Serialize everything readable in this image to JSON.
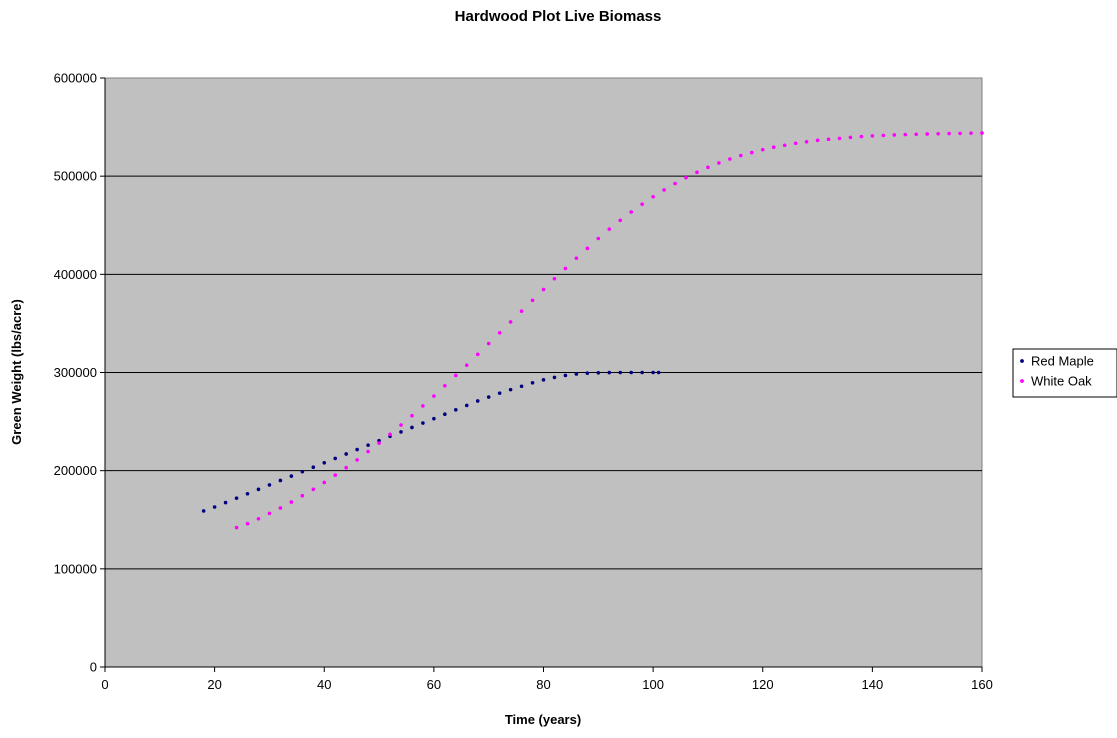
{
  "chart_data": {
    "type": "scatter",
    "title": "Hardwood Plot Live Biomass",
    "xlabel": "Time (years)",
    "ylabel": "Green Weight (lbs/acre)",
    "xlim": [
      0,
      160
    ],
    "ylim": [
      0,
      600000
    ],
    "x_ticks": [
      "0",
      "20",
      "40",
      "60",
      "80",
      "100",
      "120",
      "140",
      "160"
    ],
    "y_ticks": [
      "0",
      "100000",
      "200000",
      "300000",
      "400000",
      "500000",
      "600000"
    ],
    "grid": "horizontal",
    "legend_position": "right",
    "plot_background": "#C0C0C0",
    "series": [
      {
        "name": "Red Maple",
        "color": "#000080",
        "x": [
          18,
          20,
          22,
          24,
          26,
          28,
          30,
          32,
          34,
          36,
          38,
          40,
          42,
          44,
          46,
          48,
          50,
          52,
          54,
          56,
          58,
          60,
          62,
          64,
          66,
          68,
          70,
          72,
          74,
          76,
          78,
          80,
          82,
          84,
          86,
          88,
          90,
          92,
          94,
          96,
          98,
          100,
          101
        ],
        "y": [
          159000,
          163000,
          167500,
          172000,
          176500,
          181000,
          185500,
          190000,
          194500,
          199000,
          203500,
          208000,
          212500,
          217000,
          221500,
          226000,
          230500,
          235000,
          239500,
          244000,
          248500,
          253000,
          257500,
          262000,
          266500,
          271000,
          275000,
          279000,
          282500,
          286000,
          289500,
          292500,
          295000,
          297000,
          298500,
          299300,
          299700,
          299900,
          300000,
          300000,
          300000,
          300000,
          300000
        ]
      },
      {
        "name": "White Oak",
        "color": "#FF00FF",
        "x": [
          24,
          26,
          28,
          30,
          32,
          34,
          36,
          38,
          40,
          42,
          44,
          46,
          48,
          50,
          52,
          54,
          56,
          58,
          60,
          62,
          64,
          66,
          68,
          70,
          72,
          74,
          76,
          78,
          80,
          82,
          84,
          86,
          88,
          90,
          92,
          94,
          96,
          98,
          100,
          102,
          104,
          106,
          108,
          110,
          112,
          114,
          116,
          118,
          120,
          122,
          124,
          126,
          128,
          130,
          132,
          134,
          136,
          138,
          140,
          142,
          144,
          146,
          148,
          150,
          152,
          154,
          156,
          158,
          160
        ],
        "y": [
          142000,
          146000,
          151000,
          156500,
          162000,
          168000,
          174500,
          181000,
          188000,
          195500,
          203000,
          211000,
          219500,
          228000,
          237000,
          246500,
          256000,
          266000,
          276000,
          286500,
          297000,
          307500,
          318500,
          329500,
          340500,
          351500,
          362500,
          373500,
          384500,
          395500,
          406000,
          416500,
          426500,
          436500,
          446000,
          455000,
          463500,
          471500,
          479000,
          486000,
          492500,
          498500,
          504000,
          509000,
          513500,
          517500,
          521000,
          524000,
          527000,
          529500,
          531500,
          533500,
          535000,
          536500,
          537500,
          538500,
          539500,
          540300,
          541000,
          541500,
          542000,
          542400,
          542700,
          543000,
          543200,
          543400,
          543600,
          543800,
          544000
        ]
      }
    ]
  }
}
